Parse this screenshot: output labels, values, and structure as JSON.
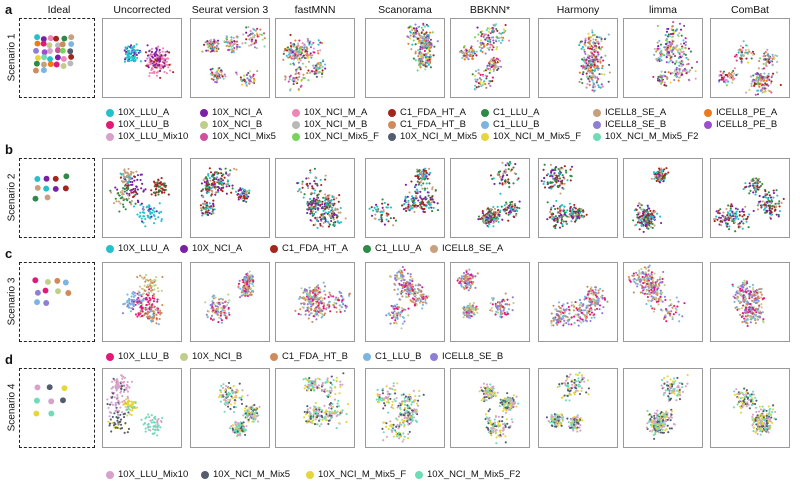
{
  "methods": [
    "Ideal",
    "Uncorrected",
    "Seurat version 3",
    "fastMNN",
    "Scanorama",
    "BBKNN*",
    "Harmony",
    "limma",
    "ComBat"
  ],
  "colors": {
    "10X_LLU_A": "#26c0cd",
    "10X_LLU_B": "#e3197a",
    "10X_LLU_Mix10": "#d7a1c9",
    "10X_NCI_A": "#7a1fa6",
    "10X_NCI_B": "#bfcf8a",
    "10X_NCI_Mix5": "#d0509e",
    "10X_NCI_M_A": "#ef86b5",
    "10X_NCI_M_B": "#b9b9b9",
    "10X_NCI_Mix5_F": "#78d35a",
    "C1_FDA_HT_A": "#a3261c",
    "C1_FDA_HT_B": "#d08b5a",
    "10X_NCI_M_Mix5": "#535d6e",
    "C1_LLU_A": "#2d8a47",
    "C1_LLU_B": "#7ab6e0",
    "10X_NCI_M_Mix5_F": "#e4d63c",
    "ICELL8_SE_A": "#c9a07c",
    "ICELL8_SE_B": "#8f7ed6",
    "10X_NCI_M_Mix5_F2": "#6fdcb6",
    "ICELL8_PE_A": "#ef7a1b",
    "ICELL8_PE_B": "#a04ed0"
  },
  "rows": [
    {
      "letter": "a",
      "scenario": "Scenario 1",
      "legend": [
        "10X_LLU_A",
        "10X_NCI_A",
        "10X_NCI_M_A",
        "C1_FDA_HT_A",
        "C1_LLU_A",
        "ICELL8_SE_A",
        "ICELL8_PE_A",
        "10X_LLU_B",
        "10X_NCI_B",
        "10X_NCI_M_B",
        "C1_FDA_HT_B",
        "C1_LLU_B",
        "ICELL8_SE_B",
        "ICELL8_PE_B",
        "10X_LLU_Mix10",
        "10X_NCI_Mix5",
        "10X_NCI_Mix5_F",
        "10X_NCI_M_Mix5",
        "10X_NCI_M_Mix5_F",
        "10X_NCI_M_Mix5_F2"
      ]
    },
    {
      "letter": "b",
      "scenario": "Scenario 2",
      "legend": [
        "10X_LLU_A",
        "10X_NCI_A",
        "C1_FDA_HT_A",
        "C1_LLU_A",
        "ICELL8_SE_A"
      ]
    },
    {
      "letter": "c",
      "scenario": "Scenario 3",
      "legend": [
        "10X_LLU_B",
        "10X_NCI_B",
        "C1_FDA_HT_B",
        "C1_LLU_B",
        "ICELL8_SE_B"
      ]
    },
    {
      "letter": "d",
      "scenario": "Scenario 4",
      "legend": [
        "10X_LLU_Mix10",
        "10X_NCI_M_Mix5",
        "10X_NCI_M_Mix5_F",
        "10X_NCI_M_Mix5_F2"
      ]
    }
  ]
}
